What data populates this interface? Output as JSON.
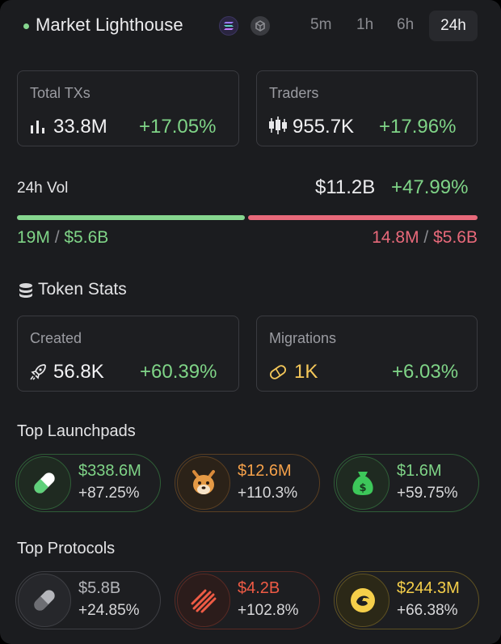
{
  "header": {
    "title": "Market Lighthouse",
    "timeframes": [
      "5m",
      "1h",
      "6h",
      "24h"
    ],
    "active_timeframe": "24h"
  },
  "stats": {
    "total_txs": {
      "label": "Total TXs",
      "value": "33.8M",
      "change": "+17.05%"
    },
    "traders": {
      "label": "Traders",
      "value": "955.7K",
      "change": "+17.96%"
    }
  },
  "volume": {
    "label": "24h Vol",
    "value": "$11.2B",
    "change": "+47.99%",
    "buy_count": "19M",
    "buy_value": "$5.6B",
    "sell_count": "14.8M",
    "sell_value": "$5.6B",
    "separator": " / ",
    "buy_fraction": 0.5
  },
  "token_stats": {
    "title": "Token Stats",
    "created": {
      "label": "Created",
      "value": "56.8K",
      "change": "+60.39%"
    },
    "migrations": {
      "label": "Migrations",
      "value": "1K",
      "change": "+6.03%"
    }
  },
  "launchpads": {
    "title": "Top Launchpads",
    "items": [
      {
        "icon": "pill-icon",
        "value": "$338.6M",
        "change": "+87.25%",
        "color": "#7fd487"
      },
      {
        "icon": "shiba-dog-icon",
        "value": "$12.6M",
        "change": "+110.3%",
        "color": "#f5a14a"
      },
      {
        "icon": "money-bag-icon",
        "value": "$1.6M",
        "change": "+59.75%",
        "color": "#7fd487"
      }
    ]
  },
  "protocols": {
    "title": "Top Protocols",
    "items": [
      {
        "icon": "gray-pill-icon",
        "value": "$5.8B",
        "change": "+24.85%",
        "color": "#b5b6bb"
      },
      {
        "icon": "slash-stripes-icon",
        "value": "$4.2B",
        "change": "+102.8%",
        "color": "#ef5b45"
      },
      {
        "icon": "coin-swirl-icon",
        "value": "$244.3M",
        "change": "+66.38%",
        "color": "#f5cf4a"
      }
    ]
  }
}
